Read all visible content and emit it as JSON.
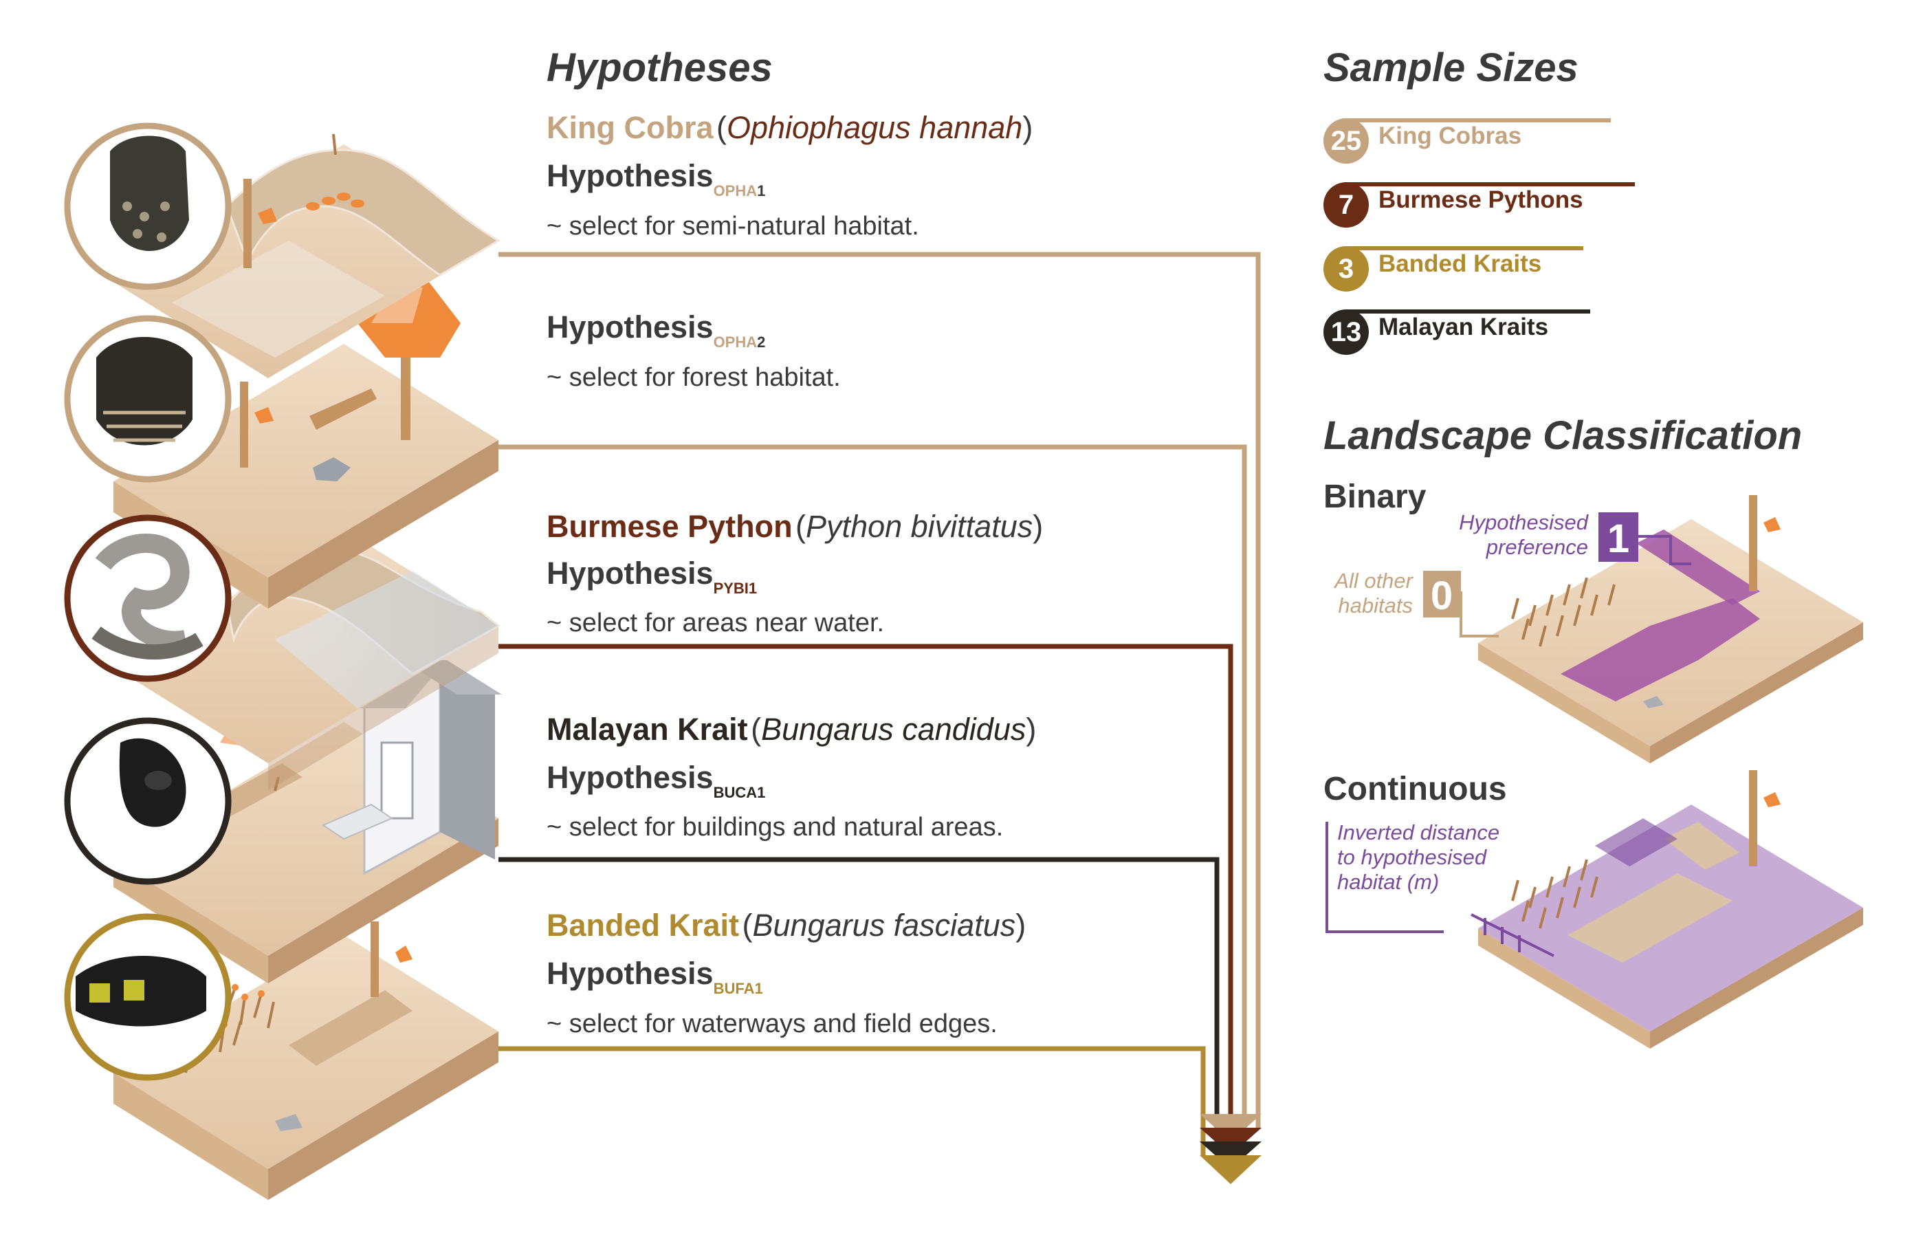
{
  "hypotheses_header": "Hypotheses",
  "sample_sizes_header": "Sample Sizes",
  "landscape_header": "Landscape Classification",
  "species": [
    {
      "common_name": "King Cobra",
      "scientific_name": "Ophiophagus hannah",
      "color": "#c4a37f",
      "hypotheses": [
        {
          "label": "Hypothesis",
          "code": "OPHA",
          "num": "1",
          "description": "~ select for semi-natural habitat."
        },
        {
          "label": "Hypothesis",
          "code": "OPHA",
          "num": "2",
          "description": "~ select for forest habitat."
        }
      ]
    },
    {
      "common_name": "Burmese Python",
      "scientific_name": "Python bivittatus",
      "color": "#6b2c15",
      "hypotheses": [
        {
          "label": "Hypothesis",
          "code": "PYBI",
          "num": "1",
          "description": "~ select for areas near water."
        }
      ]
    },
    {
      "common_name": "Malayan Krait",
      "scientific_name": "Bungarus candidus",
      "color": "#2b2620",
      "hypotheses": [
        {
          "label": "Hypothesis",
          "code": "BUCA",
          "num": "1",
          "description": "~ select for buildings and natural areas."
        }
      ]
    },
    {
      "common_name": "Banded Krait",
      "scientific_name": "Bungarus fasciatus",
      "color": "#b08a2e",
      "hypotheses": [
        {
          "label": "Hypothesis",
          "code": "BUFA",
          "num": "1",
          "description": "~ select for waterways and field edges."
        }
      ]
    }
  ],
  "sample_sizes": [
    {
      "count": "25",
      "label": "King Cobras",
      "color": "#c4a37f"
    },
    {
      "count": "7",
      "label": "Burmese Pythons",
      "color": "#6b2c15"
    },
    {
      "count": "3",
      "label": "Banded Kraits",
      "color": "#b08a2e"
    },
    {
      "count": "13",
      "label": "Malayan Kraits",
      "color": "#2b2620"
    }
  ],
  "classification": {
    "binary": {
      "label": "Binary",
      "preferred_value": "1",
      "preferred_text": "Hypothesised preference",
      "other_value": "0",
      "other_text": "All other habitats"
    },
    "continuous": {
      "label": "Continuous",
      "annotation": "Inverted distance to hypothesised habitat (m)"
    }
  },
  "colors": {
    "purple": "#7b4a9c",
    "terrain": "#e2c7a8",
    "terrain_dark": "#c8a27c",
    "orange": "#ee8a3a"
  }
}
